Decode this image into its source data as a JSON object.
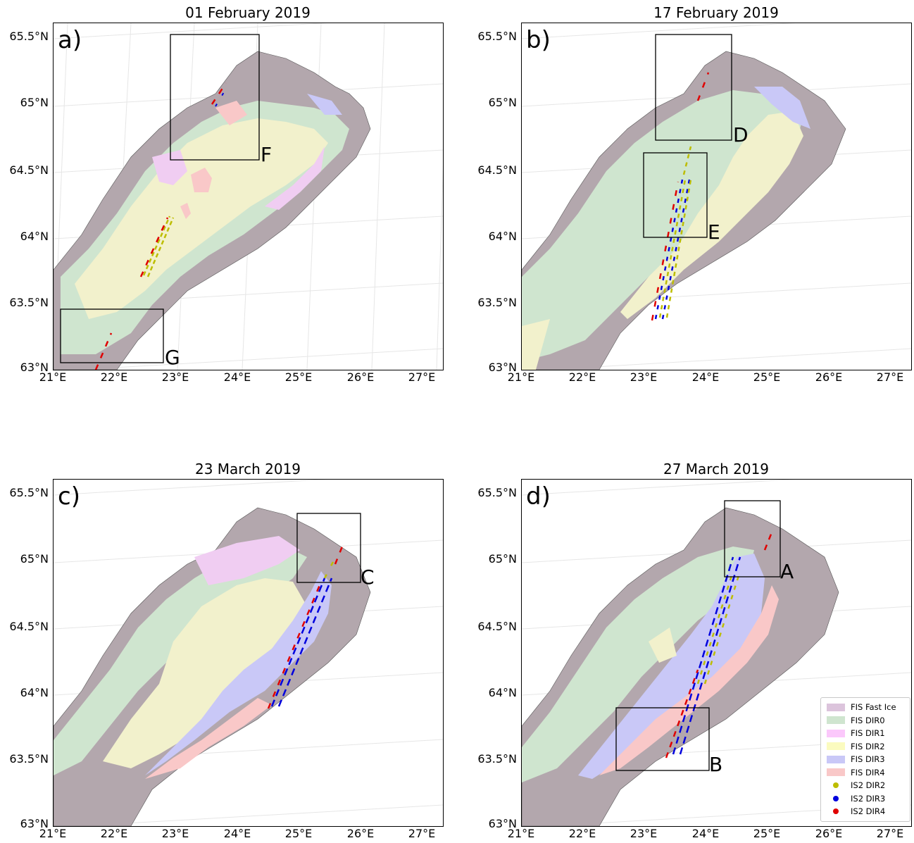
{
  "colors": {
    "fast_ice": "#b3a7ad",
    "dir0": "#cfe5cf",
    "dir1": "#f0cdf2",
    "dir2": "#f2f1cc",
    "dir3": "#c9c8f7",
    "dir4": "#f9c8c8",
    "is2_dir2": "#bdbd00",
    "is2_dir3": "#0000dd",
    "is2_dir4": "#e00000"
  },
  "axes": {
    "y_labels": [
      "65.5°N",
      "65°N",
      "64.5°N",
      "64°N",
      "63.5°N",
      "63°N"
    ],
    "x_labels": [
      "21°E",
      "22°E",
      "23°E",
      "24°E",
      "25°E",
      "26°E",
      "27°E"
    ]
  },
  "panels": [
    {
      "letter": "a)",
      "title": "01 February 2019",
      "boxes": [
        "F",
        "G"
      ]
    },
    {
      "letter": "b)",
      "title": "17 February 2019",
      "boxes": [
        "D",
        "E"
      ]
    },
    {
      "letter": "c)",
      "title": "23 March 2019",
      "boxes": [
        "C"
      ]
    },
    {
      "letter": "d)",
      "title": "27 March 2019",
      "boxes": [
        "A",
        "B"
      ]
    }
  ],
  "legend": {
    "items": [
      {
        "label": "FIS Fast Ice",
        "kind": "patch",
        "color": "#dcc4dc"
      },
      {
        "label": "FIS DIR0",
        "kind": "patch",
        "color": "#cfe5cf"
      },
      {
        "label": "FIS DIR1",
        "kind": "patch",
        "color": "#fbc8fb"
      },
      {
        "label": "FIS DIR2",
        "kind": "patch",
        "color": "#fbfbbf"
      },
      {
        "label": "FIS DIR3",
        "kind": "patch",
        "color": "#c9c8f7"
      },
      {
        "label": "FIS DIR4",
        "kind": "patch",
        "color": "#f9c8c8"
      },
      {
        "label": "IS2 DIR2",
        "kind": "dot",
        "color": "#bdbd00"
      },
      {
        "label": "IS2 DIR3",
        "kind": "dot",
        "color": "#0000dd"
      },
      {
        "label": "IS2 DIR4",
        "kind": "dot",
        "color": "#e00000"
      }
    ]
  }
}
